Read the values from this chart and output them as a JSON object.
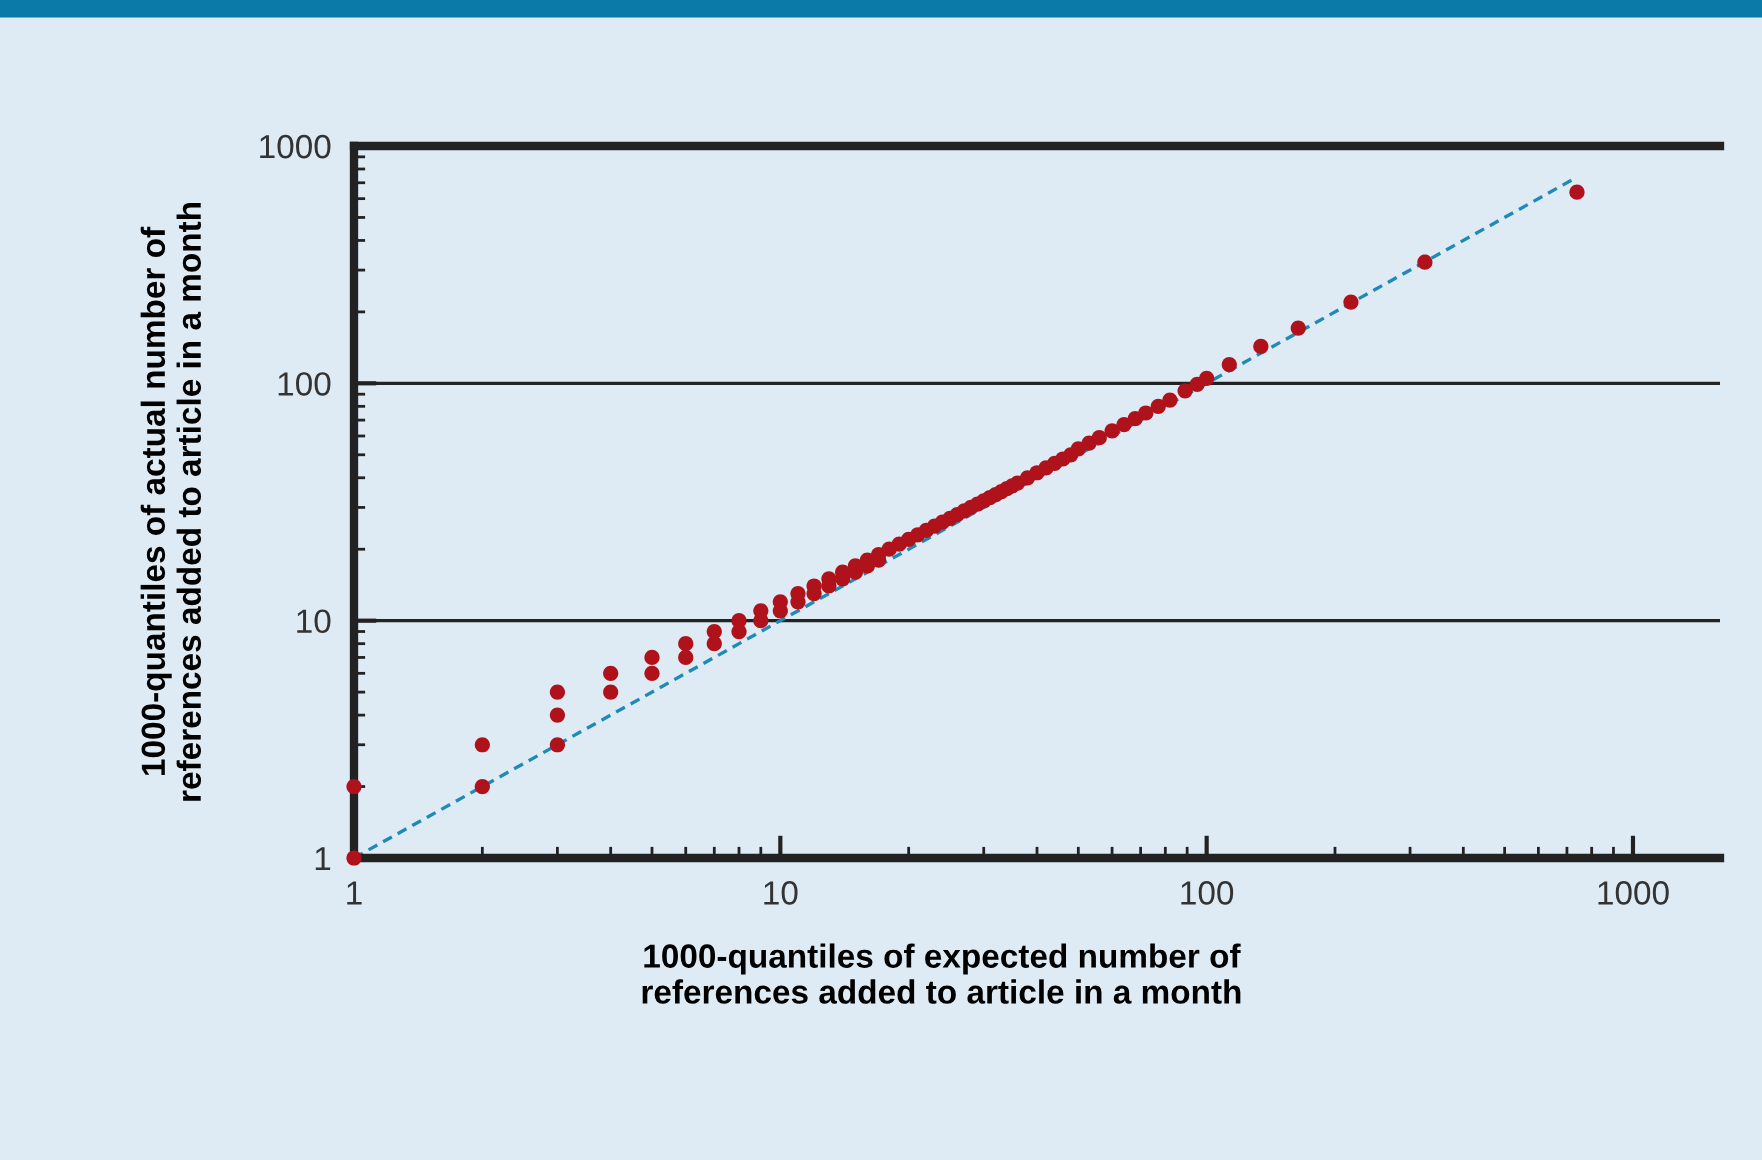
{
  "chart_data": {
    "type": "scatter",
    "xlabel": "1000-quantiles of expected number of\nreferences added to article in a month",
    "ylabel": "1000-quantiles of actual number of\nreferences added to article in a month",
    "log": "xy",
    "xlim": [
      1,
      1600
    ],
    "ylim": [
      1,
      1000
    ],
    "xticks": [
      1,
      10,
      100,
      1000
    ],
    "yticks": [
      1,
      10,
      100,
      1000
    ],
    "grid": "y",
    "legend": false,
    "series": [
      {
        "marker": "circle",
        "color": "#b0121b",
        "x": [
          1,
          1,
          2,
          2,
          3,
          3,
          3,
          4,
          4,
          5,
          5,
          6,
          6,
          7,
          7,
          8,
          8,
          9,
          9,
          10,
          10,
          11,
          11,
          12,
          12,
          13,
          13,
          14,
          14,
          15,
          15,
          16,
          16,
          17,
          17,
          18,
          19,
          20,
          21,
          22,
          23,
          24,
          25,
          26,
          27,
          28,
          29,
          30,
          31,
          32,
          33,
          34,
          35,
          36,
          38,
          40,
          42,
          44,
          46,
          48,
          50,
          53,
          56,
          60,
          64,
          68,
          72,
          77,
          82,
          89,
          95,
          100,
          113,
          134,
          164,
          218,
          325,
          739
        ],
        "values": [
          1,
          2,
          2,
          3,
          3,
          4,
          5,
          5,
          6,
          6,
          7,
          7,
          8,
          8,
          9,
          9,
          10,
          10,
          11,
          11,
          12,
          12,
          13,
          13,
          14,
          14,
          15,
          15,
          16,
          16,
          17,
          17,
          18,
          18,
          19,
          20,
          21,
          22,
          23,
          24,
          25,
          26,
          27,
          28,
          29,
          30,
          31,
          32,
          33,
          34,
          35,
          36,
          37,
          38,
          40,
          42,
          44,
          46,
          48,
          50,
          53,
          56,
          59,
          63,
          67,
          71,
          75,
          80,
          85,
          93,
          99,
          105,
          120,
          143,
          171,
          220,
          324,
          639
        ]
      },
      {
        "type": "line",
        "color": "#1f8ab5",
        "line_style": "dashed",
        "x": [
          1,
          740
        ],
        "values": [
          1,
          740
        ]
      }
    ]
  }
}
